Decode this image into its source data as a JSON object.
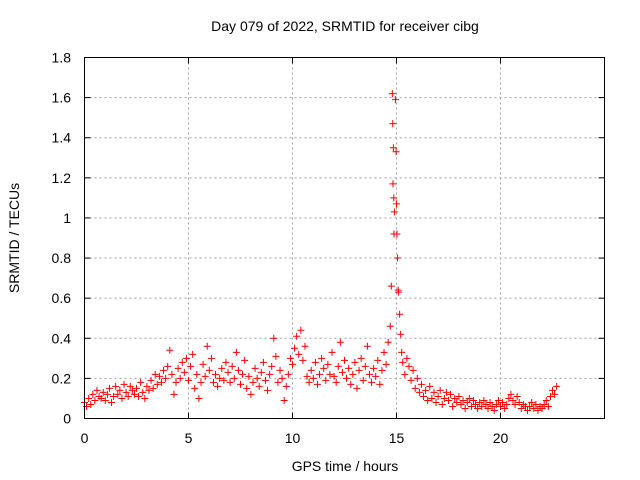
{
  "chart_data": {
    "type": "scatter",
    "title": "Day 079 of 2022, SRMTID for receiver cibg",
    "xlabel": "GPS time / hours",
    "ylabel": "SRMTID / TECUs",
    "xlim": [
      0,
      25
    ],
    "ylim": [
      0,
      1.8
    ],
    "xticks": [
      0,
      5,
      10,
      15,
      20
    ],
    "xtick_labels": [
      "0",
      "5",
      "10",
      "15",
      "20"
    ],
    "yticks": [
      0,
      0.2,
      0.4,
      0.6,
      0.8,
      1.0,
      1.2,
      1.4,
      1.6,
      1.8
    ],
    "ytick_labels": [
      "0",
      "0.2",
      "0.4",
      "0.6",
      "0.8",
      "1",
      "1.2",
      "1.4",
      "1.6",
      "1.8"
    ],
    "grid": true,
    "marker": "+",
    "series": [
      {
        "name": "SRMTID",
        "color": "#ff0000",
        "points": [
          [
            0.0,
            0.08
          ],
          [
            0.1,
            0.06
          ],
          [
            0.2,
            0.1
          ],
          [
            0.3,
            0.07
          ],
          [
            0.4,
            0.12
          ],
          [
            0.5,
            0.09
          ],
          [
            0.6,
            0.14
          ],
          [
            0.7,
            0.11
          ],
          [
            0.8,
            0.1
          ],
          [
            0.9,
            0.13
          ],
          [
            1.0,
            0.09
          ],
          [
            1.1,
            0.12
          ],
          [
            1.2,
            0.15
          ],
          [
            1.3,
            0.08
          ],
          [
            1.4,
            0.11
          ],
          [
            1.5,
            0.16
          ],
          [
            1.6,
            0.12
          ],
          [
            1.7,
            0.14
          ],
          [
            1.8,
            0.1
          ],
          [
            1.9,
            0.17
          ],
          [
            2.0,
            0.13
          ],
          [
            2.1,
            0.11
          ],
          [
            2.2,
            0.16
          ],
          [
            2.3,
            0.14
          ],
          [
            2.4,
            0.12
          ],
          [
            2.5,
            0.15
          ],
          [
            2.6,
            0.11
          ],
          [
            2.7,
            0.18
          ],
          [
            2.8,
            0.13
          ],
          [
            2.9,
            0.1
          ],
          [
            3.0,
            0.16
          ],
          [
            3.1,
            0.14
          ],
          [
            3.2,
            0.19
          ],
          [
            3.3,
            0.15
          ],
          [
            3.4,
            0.22
          ],
          [
            3.5,
            0.17
          ],
          [
            3.6,
            0.21
          ],
          [
            3.7,
            0.18
          ],
          [
            3.8,
            0.24
          ],
          [
            3.9,
            0.2
          ],
          [
            4.0,
            0.26
          ],
          [
            4.1,
            0.34
          ],
          [
            4.2,
            0.22
          ],
          [
            4.3,
            0.12
          ],
          [
            4.4,
            0.18
          ],
          [
            4.5,
            0.25
          ],
          [
            4.6,
            0.2
          ],
          [
            4.7,
            0.28
          ],
          [
            4.8,
            0.23
          ],
          [
            4.9,
            0.3
          ],
          [
            5.0,
            0.19
          ],
          [
            5.1,
            0.26
          ],
          [
            5.2,
            0.32
          ],
          [
            5.3,
            0.15
          ],
          [
            5.4,
            0.22
          ],
          [
            5.5,
            0.1
          ],
          [
            5.6,
            0.18
          ],
          [
            5.7,
            0.27
          ],
          [
            5.8,
            0.21
          ],
          [
            5.9,
            0.36
          ],
          [
            6.0,
            0.24
          ],
          [
            6.1,
            0.3
          ],
          [
            6.2,
            0.18
          ],
          [
            6.3,
            0.22
          ],
          [
            6.4,
            0.16
          ],
          [
            6.5,
            0.2
          ],
          [
            6.6,
            0.25
          ],
          [
            6.7,
            0.19
          ],
          [
            6.8,
            0.28
          ],
          [
            6.9,
            0.23
          ],
          [
            7.0,
            0.18
          ],
          [
            7.1,
            0.26
          ],
          [
            7.2,
            0.2
          ],
          [
            7.3,
            0.33
          ],
          [
            7.4,
            0.24
          ],
          [
            7.5,
            0.17
          ],
          [
            7.6,
            0.22
          ],
          [
            7.7,
            0.29
          ],
          [
            7.8,
            0.15
          ],
          [
            7.9,
            0.21
          ],
          [
            8.0,
            0.12
          ],
          [
            8.1,
            0.18
          ],
          [
            8.2,
            0.25
          ],
          [
            8.3,
            0.2
          ],
          [
            8.4,
            0.16
          ],
          [
            8.5,
            0.23
          ],
          [
            8.6,
            0.28
          ],
          [
            8.7,
            0.19
          ],
          [
            8.8,
            0.14
          ],
          [
            8.9,
            0.22
          ],
          [
            9.0,
            0.26
          ],
          [
            9.1,
            0.4
          ],
          [
            9.2,
            0.31
          ],
          [
            9.3,
            0.18
          ],
          [
            9.4,
            0.24
          ],
          [
            9.5,
            0.2
          ],
          [
            9.6,
            0.09
          ],
          [
            9.7,
            0.16
          ],
          [
            9.8,
            0.22
          ],
          [
            9.9,
            0.3
          ],
          [
            10.0,
            0.27
          ],
          [
            10.1,
            0.35
          ],
          [
            10.2,
            0.41
          ],
          [
            10.3,
            0.32
          ],
          [
            10.4,
            0.44
          ],
          [
            10.5,
            0.29
          ],
          [
            10.6,
            0.36
          ],
          [
            10.7,
            0.21
          ],
          [
            10.8,
            0.18
          ],
          [
            10.9,
            0.24
          ],
          [
            11.0,
            0.2
          ],
          [
            11.1,
            0.28
          ],
          [
            11.2,
            0.17
          ],
          [
            11.3,
            0.22
          ],
          [
            11.4,
            0.3
          ],
          [
            11.5,
            0.25
          ],
          [
            11.6,
            0.19
          ],
          [
            11.7,
            0.27
          ],
          [
            11.8,
            0.22
          ],
          [
            11.9,
            0.33
          ],
          [
            12.0,
            0.21
          ],
          [
            12.1,
            0.18
          ],
          [
            12.2,
            0.26
          ],
          [
            12.3,
            0.38
          ],
          [
            12.4,
            0.23
          ],
          [
            12.5,
            0.29
          ],
          [
            12.6,
            0.2
          ],
          [
            12.7,
            0.25
          ],
          [
            12.8,
            0.17
          ],
          [
            12.9,
            0.22
          ],
          [
            13.0,
            0.28
          ],
          [
            13.1,
            0.15
          ],
          [
            13.2,
            0.24
          ],
          [
            13.3,
            0.3
          ],
          [
            13.4,
            0.19
          ],
          [
            13.5,
            0.26
          ],
          [
            13.6,
            0.36
          ],
          [
            13.7,
            0.22
          ],
          [
            13.8,
            0.18
          ],
          [
            13.9,
            0.25
          ],
          [
            14.0,
            0.21
          ],
          [
            14.1,
            0.29
          ],
          [
            14.2,
            0.17
          ],
          [
            14.3,
            0.24
          ],
          [
            14.4,
            0.33
          ],
          [
            14.5,
            0.27
          ],
          [
            14.6,
            0.38
          ],
          [
            14.7,
            0.46
          ],
          [
            14.75,
            0.66
          ],
          [
            14.8,
            1.62
          ],
          [
            14.82,
            1.47
          ],
          [
            14.85,
            1.35
          ],
          [
            14.83,
            1.17
          ],
          [
            14.87,
            1.1
          ],
          [
            14.9,
            1.03
          ],
          [
            14.88,
            0.92
          ],
          [
            14.95,
            1.59
          ],
          [
            14.98,
            1.33
          ],
          [
            15.0,
            1.07
          ],
          [
            15.02,
            0.92
          ],
          [
            15.05,
            0.8
          ],
          [
            15.08,
            0.64
          ],
          [
            15.1,
            0.63
          ],
          [
            15.15,
            0.52
          ],
          [
            15.2,
            0.42
          ],
          [
            15.25,
            0.33
          ],
          [
            15.3,
            0.28
          ],
          [
            15.4,
            0.22
          ],
          [
            15.5,
            0.3
          ],
          [
            15.6,
            0.26
          ],
          [
            15.7,
            0.19
          ],
          [
            15.8,
            0.24
          ],
          [
            15.9,
            0.15
          ],
          [
            16.0,
            0.2
          ],
          [
            16.1,
            0.13
          ],
          [
            16.2,
            0.17
          ],
          [
            16.3,
            0.11
          ],
          [
            16.4,
            0.14
          ],
          [
            16.5,
            0.09
          ],
          [
            16.6,
            0.16
          ],
          [
            16.7,
            0.1
          ],
          [
            16.8,
            0.13
          ],
          [
            16.9,
            0.08
          ],
          [
            17.0,
            0.11
          ],
          [
            17.1,
            0.14
          ],
          [
            17.2,
            0.07
          ],
          [
            17.3,
            0.1
          ],
          [
            17.4,
            0.13
          ],
          [
            17.5,
            0.09
          ],
          [
            17.6,
            0.12
          ],
          [
            17.7,
            0.06
          ],
          [
            17.8,
            0.1
          ],
          [
            17.9,
            0.08
          ],
          [
            18.0,
            0.11
          ],
          [
            18.1,
            0.07
          ],
          [
            18.2,
            0.09
          ],
          [
            18.3,
            0.05
          ],
          [
            18.4,
            0.08
          ],
          [
            18.5,
            0.1
          ],
          [
            18.6,
            0.06
          ],
          [
            18.7,
            0.09
          ],
          [
            18.8,
            0.07
          ],
          [
            18.9,
            0.05
          ],
          [
            19.0,
            0.08
          ],
          [
            19.1,
            0.06
          ],
          [
            19.2,
            0.09
          ],
          [
            19.3,
            0.07
          ],
          [
            19.4,
            0.05
          ],
          [
            19.5,
            0.08
          ],
          [
            19.6,
            0.06
          ],
          [
            19.7,
            0.04
          ],
          [
            19.8,
            0.07
          ],
          [
            19.9,
            0.09
          ],
          [
            20.0,
            0.06
          ],
          [
            20.1,
            0.08
          ],
          [
            20.2,
            0.05
          ],
          [
            20.3,
            0.07
          ],
          [
            20.4,
            0.1
          ],
          [
            20.5,
            0.12
          ],
          [
            20.6,
            0.09
          ],
          [
            20.7,
            0.07
          ],
          [
            20.8,
            0.11
          ],
          [
            20.9,
            0.08
          ],
          [
            21.0,
            0.05
          ],
          [
            21.1,
            0.07
          ],
          [
            21.2,
            0.06
          ],
          [
            21.3,
            0.04
          ],
          [
            21.4,
            0.06
          ],
          [
            21.5,
            0.08
          ],
          [
            21.6,
            0.05
          ],
          [
            21.7,
            0.07
          ],
          [
            21.8,
            0.04
          ],
          [
            21.9,
            0.06
          ],
          [
            22.0,
            0.05
          ],
          [
            22.1,
            0.07
          ],
          [
            22.2,
            0.09
          ],
          [
            22.3,
            0.06
          ],
          [
            22.4,
            0.11
          ],
          [
            22.5,
            0.14
          ],
          [
            22.6,
            0.12
          ],
          [
            22.7,
            0.16
          ]
        ]
      }
    ]
  }
}
